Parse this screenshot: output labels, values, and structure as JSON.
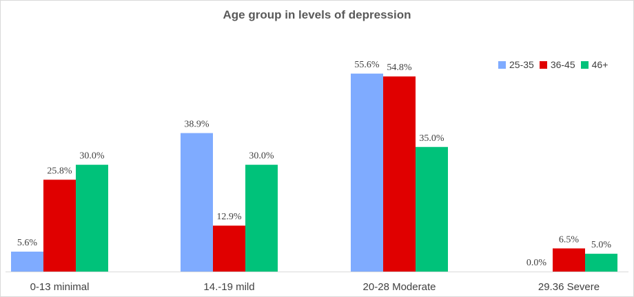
{
  "chart_data": {
    "type": "bar",
    "title": "Age group in levels of depression",
    "categories": [
      "0-13 minimal",
      "14.-19 mild",
      "20-28 Moderate",
      "29.36 Severe"
    ],
    "series": [
      {
        "name": "25-35",
        "color": "#7fabff",
        "values": [
          5.6,
          38.9,
          55.6,
          0.0
        ],
        "labels": [
          "5.6%",
          "38.9%",
          "55.6%",
          "0.0%"
        ]
      },
      {
        "name": "36-45",
        "color": "#e00000",
        "values": [
          25.8,
          12.9,
          54.8,
          6.5
        ],
        "labels": [
          "25.8%",
          "12.9%",
          "54.8%",
          "6.5%"
        ]
      },
      {
        "name": "46+",
        "color": "#00c27a",
        "values": [
          30.0,
          30.0,
          35.0,
          5.0
        ],
        "labels": [
          "30.0%",
          "30.0%",
          "35.0%",
          "5.0%"
        ]
      }
    ],
    "ylim": [
      0,
      56
    ],
    "grid": false,
    "legend_position": "top-right"
  }
}
